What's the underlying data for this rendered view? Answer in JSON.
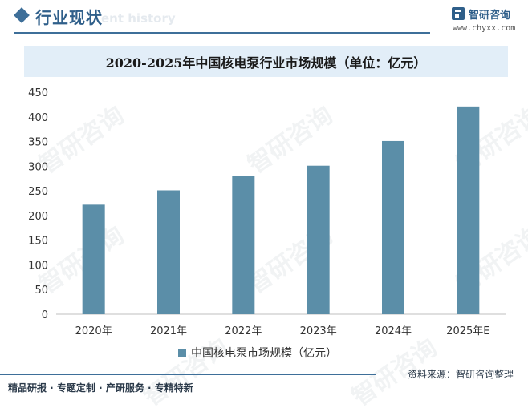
{
  "header": {
    "section_title": "行业现状",
    "section_ghost": "ent history",
    "brand_name": "智研咨询",
    "brand_url": "www.chyxx.com"
  },
  "watermark_text": "智研咨询",
  "chart_data": {
    "type": "bar",
    "title": "2020-2025年中国核电泵行业市场规模（单位：亿元）",
    "categories": [
      "2020年",
      "2021年",
      "2022年",
      "2023年",
      "2024年",
      "2025年E"
    ],
    "series": [
      {
        "name": "中国核电泵市场规模（亿元）",
        "values": [
          222,
          251,
          281,
          301,
          351,
          421
        ],
        "color": "#5b8ea8"
      }
    ],
    "ylim": [
      0,
      450
    ],
    "yticks": [
      0,
      50,
      100,
      150,
      200,
      250,
      300,
      350,
      400,
      450
    ],
    "xlabel": "",
    "ylabel": "",
    "grid": false,
    "legend": "bottom"
  },
  "footer": {
    "left_text": "精品研报 · 专题定制 · 产研服务 · 专精特新",
    "source_text": "资料来源：智研咨询整理"
  }
}
